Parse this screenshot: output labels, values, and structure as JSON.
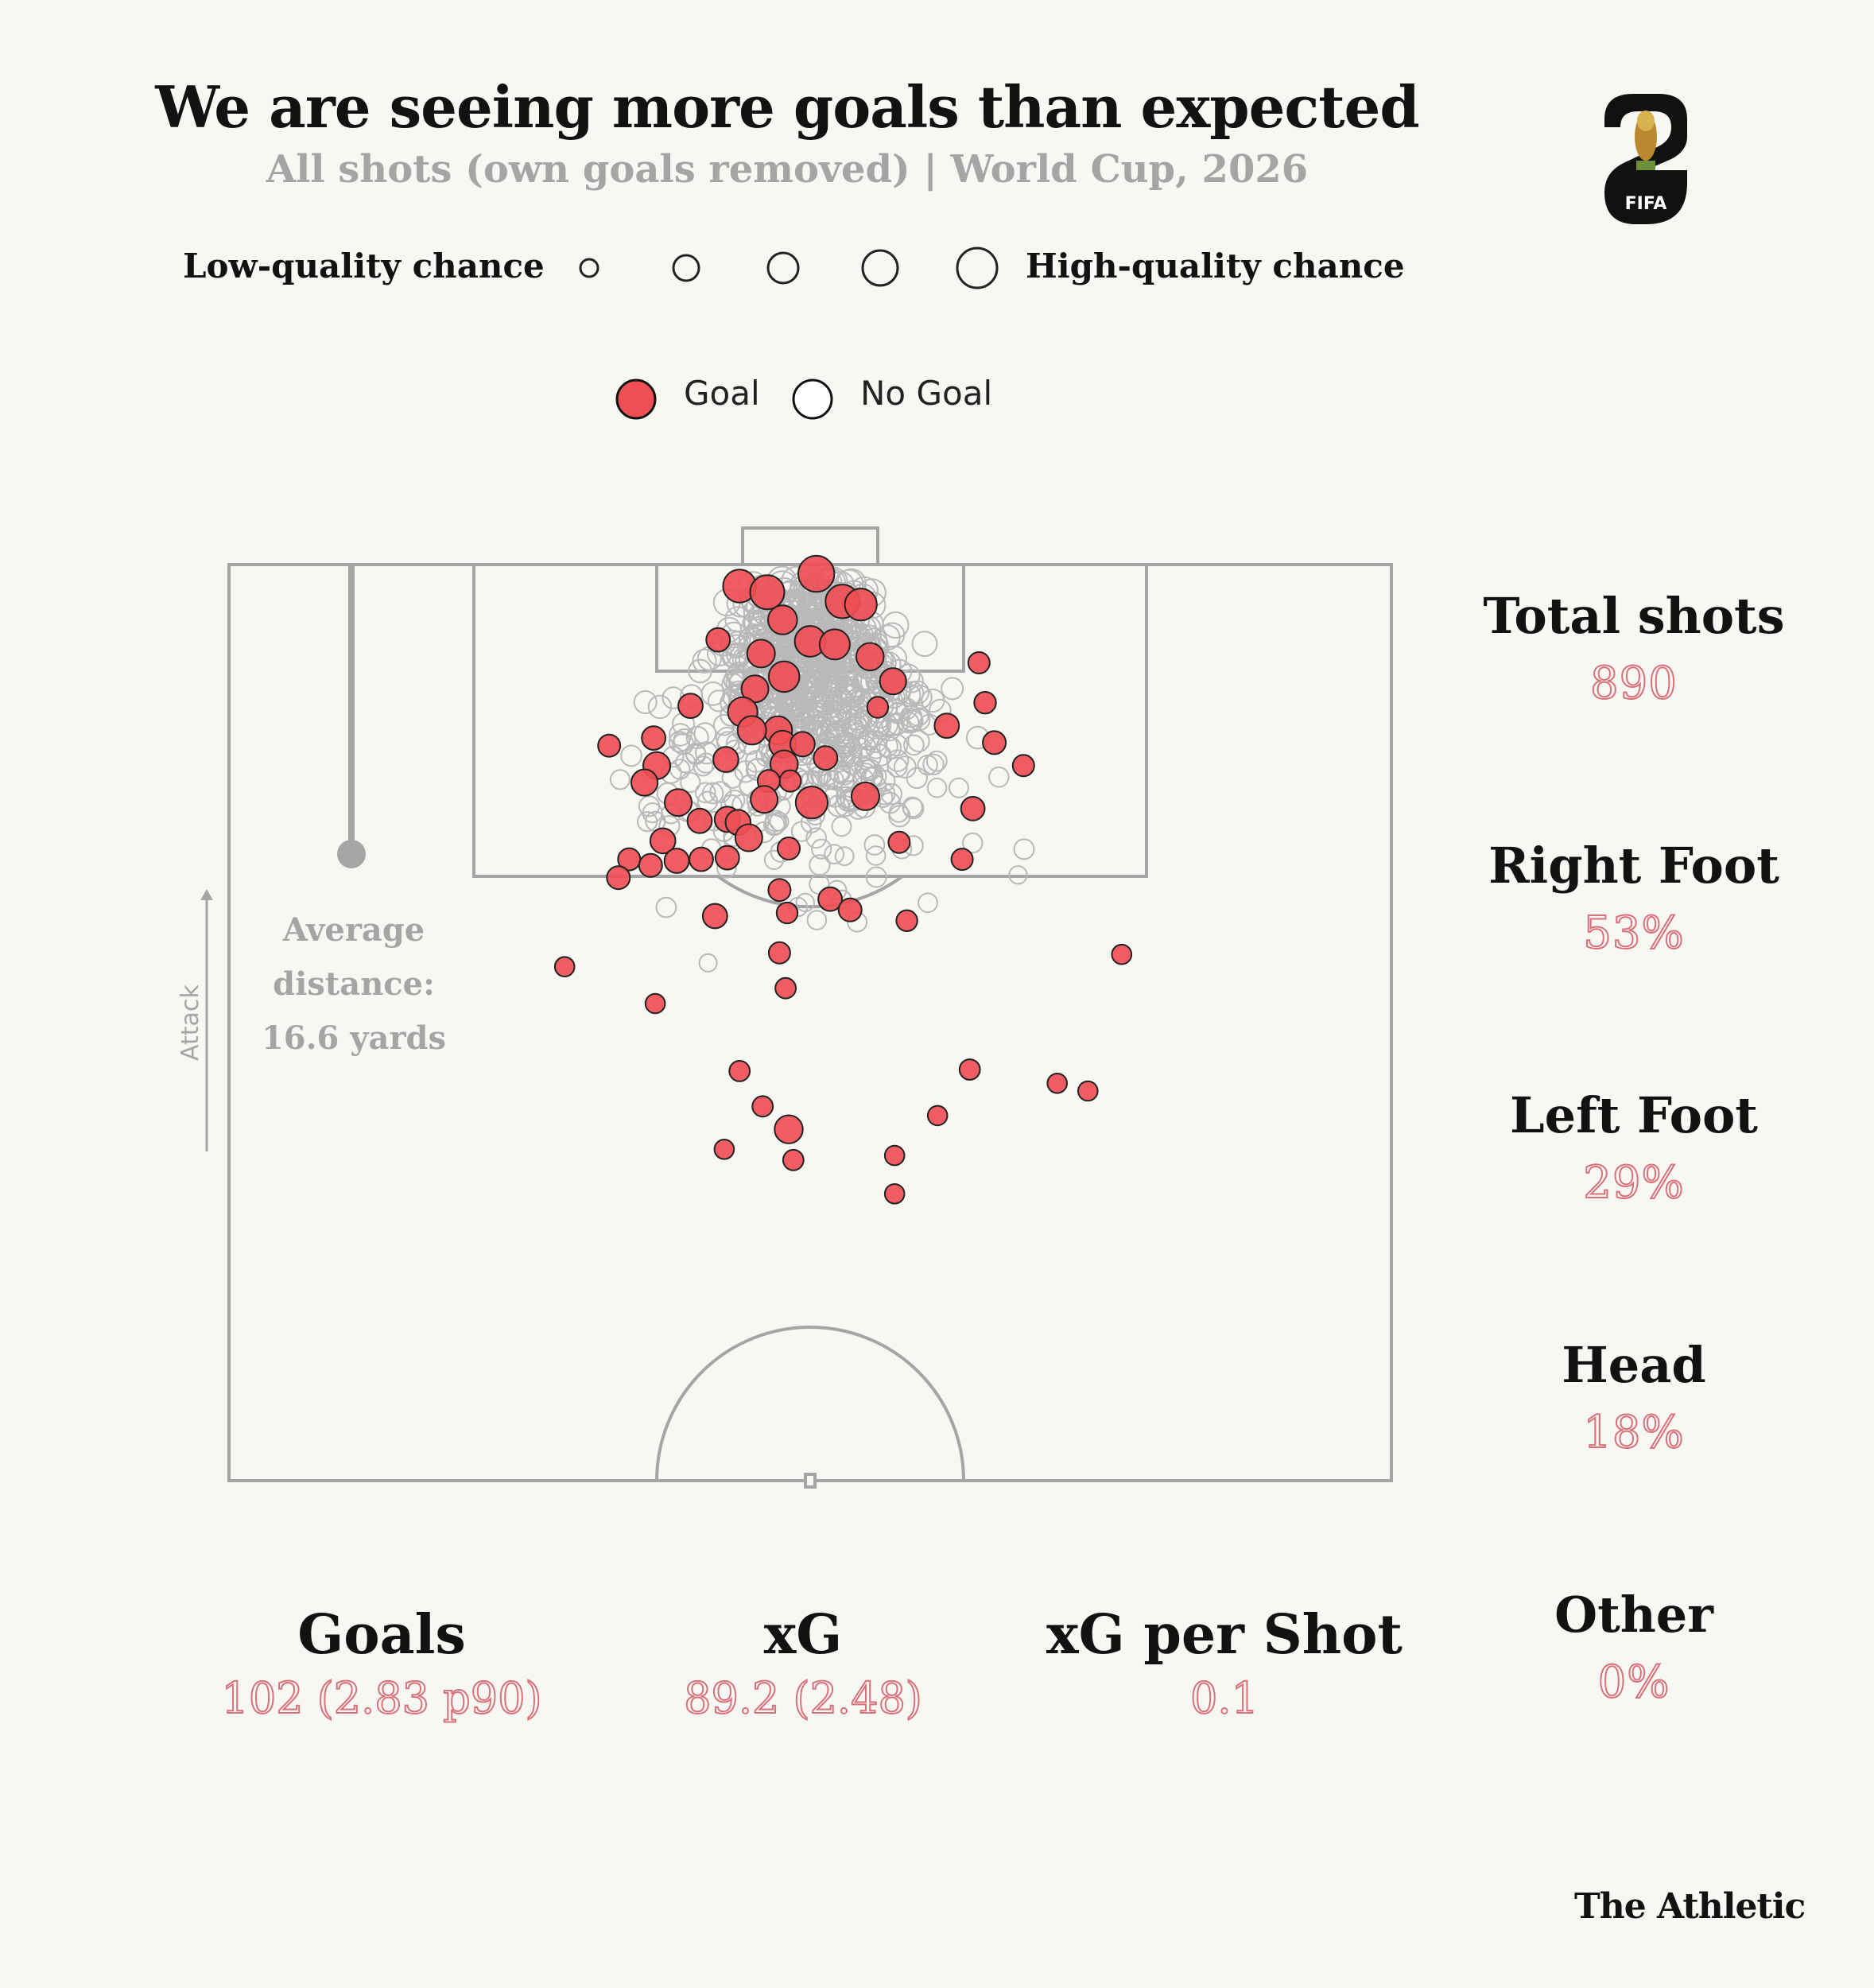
{
  "header": {
    "title": "We are seeing more goals than expected",
    "subtitle": "All shots (own goals removed) | World Cup, 2026"
  },
  "logo": {
    "text": "FIFA"
  },
  "size_legend": {
    "low_label": "Low-quality chance",
    "high_label": "High-quality chance"
  },
  "outcome_legend": {
    "goal_label": "Goal",
    "no_goal_label": "No Goal",
    "goal_color": "#ee4f55",
    "no_goal_color": "#ffffff"
  },
  "average": {
    "line1": "Average",
    "line2": "distance:",
    "line3": "16.6 yards",
    "value_yards": 16.6
  },
  "attack_label": "Attack",
  "side_stats": [
    {
      "label": "Total shots",
      "value": "890"
    },
    {
      "label": "Right Foot",
      "value": "53%"
    },
    {
      "label": "Left Foot",
      "value": "29%"
    },
    {
      "label": "Head",
      "value": "18%"
    },
    {
      "label": "Other",
      "value": "0%"
    }
  ],
  "bottom_stats": [
    {
      "label": "Goals",
      "value": "102 (2.83 p90)"
    },
    {
      "label": "xG",
      "value": "89.2 (2.48)"
    },
    {
      "label": "xG per Shot",
      "value": "0.1"
    }
  ],
  "brand": "The Athletic",
  "colors": {
    "accent": "#d9717a",
    "goal_fill": "#ee4f55",
    "pitch_line": "#a5a5a5"
  },
  "chart_data": {
    "type": "scatter",
    "description_units": "x: yards from goal centre (negative = left), y: yards from goal line; size: xG 0–1",
    "shots_total": 890,
    "goals": [
      [
        -4.6,
        1.4,
        0.55
      ],
      [
        -2.8,
        1.8,
        0.6
      ],
      [
        0.4,
        0.6,
        0.7
      ],
      [
        2.1,
        2.4,
        0.58
      ],
      [
        3.3,
        2.6,
        0.5
      ],
      [
        -1.8,
        3.6,
        0.38
      ],
      [
        -3.2,
        5.8,
        0.33
      ],
      [
        0.0,
        5.0,
        0.45
      ],
      [
        1.6,
        5.2,
        0.42
      ],
      [
        3.9,
        6.0,
        0.32
      ],
      [
        -6.0,
        4.9,
        0.2
      ],
      [
        -1.7,
        7.3,
        0.44
      ],
      [
        -3.6,
        8.1,
        0.3
      ],
      [
        5.4,
        7.6,
        0.28
      ],
      [
        -7.8,
        9.2,
        0.22
      ],
      [
        -4.4,
        9.6,
        0.4
      ],
      [
        11.0,
        6.4,
        0.14
      ],
      [
        -10.2,
        11.3,
        0.2
      ],
      [
        -2.1,
        10.8,
        0.35
      ],
      [
        -3.8,
        10.8,
        0.36
      ],
      [
        -1.8,
        11.7,
        0.3
      ],
      [
        -5.5,
        12.7,
        0.24
      ],
      [
        -13.1,
        11.8,
        0.16
      ],
      [
        -1.7,
        13.0,
        0.32
      ],
      [
        -0.5,
        11.7,
        0.22
      ],
      [
        1.0,
        12.6,
        0.2
      ],
      [
        -1.3,
        14.1,
        0.14
      ],
      [
        -2.7,
        14.1,
        0.16
      ],
      [
        4.4,
        9.3,
        0.13
      ],
      [
        -10.0,
        13.1,
        0.3
      ],
      [
        -10.8,
        14.2,
        0.28
      ],
      [
        8.9,
        10.5,
        0.22
      ],
      [
        12.0,
        11.6,
        0.18
      ],
      [
        11.4,
        9.0,
        0.15
      ],
      [
        -8.6,
        15.5,
        0.3
      ],
      [
        -3.0,
        15.3,
        0.3
      ],
      [
        0.1,
        15.5,
        0.5
      ],
      [
        3.6,
        15.1,
        0.33
      ],
      [
        -9.6,
        18.0,
        0.24
      ],
      [
        10.6,
        15.9,
        0.2
      ],
      [
        -5.4,
        16.6,
        0.25
      ],
      [
        13.9,
        13.1,
        0.14
      ],
      [
        -7.2,
        16.7,
        0.22
      ],
      [
        -4.7,
        16.8,
        0.24
      ],
      [
        -4.0,
        17.8,
        0.3
      ],
      [
        -7.1,
        19.2,
        0.2
      ],
      [
        -11.8,
        19.2,
        0.16
      ],
      [
        -8.7,
        19.3,
        0.22
      ],
      [
        -12.5,
        20.4,
        0.18
      ],
      [
        9.9,
        19.2,
        0.14
      ],
      [
        -10.4,
        19.6,
        0.18
      ],
      [
        -5.4,
        19.1,
        0.2
      ],
      [
        -1.4,
        18.5,
        0.16
      ],
      [
        5.8,
        18.1,
        0.14
      ],
      [
        -2.0,
        21.2,
        0.16
      ],
      [
        1.3,
        21.8,
        0.2
      ],
      [
        2.6,
        22.5,
        0.18
      ],
      [
        -1.5,
        22.7,
        0.13
      ],
      [
        6.3,
        23.2,
        0.13
      ],
      [
        -6.2,
        22.9,
        0.22
      ],
      [
        -2.0,
        25.3,
        0.14
      ],
      [
        -16.0,
        26.2,
        0.1
      ],
      [
        20.3,
        25.4,
        0.1
      ],
      [
        -1.6,
        27.6,
        0.12
      ],
      [
        -10.1,
        28.6,
        0.1
      ],
      [
        -4.6,
        33.0,
        0.12
      ],
      [
        -3.1,
        35.3,
        0.12
      ],
      [
        -1.4,
        36.8,
        0.34
      ],
      [
        10.4,
        32.9,
        0.12
      ],
      [
        16.1,
        33.8,
        0.1
      ],
      [
        18.1,
        34.3,
        0.1
      ],
      [
        8.3,
        35.9,
        0.1
      ],
      [
        -5.6,
        38.1,
        0.1
      ],
      [
        -1.1,
        38.8,
        0.12
      ],
      [
        5.5,
        38.5,
        0.1
      ],
      [
        5.5,
        41.0,
        0.1
      ]
    ]
  }
}
